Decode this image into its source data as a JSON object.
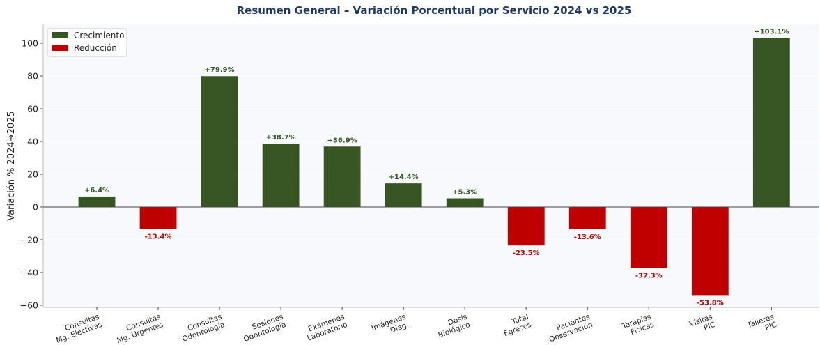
{
  "chart_data": {
    "type": "bar",
    "title": "Resumen General – Variación Porcentual por Servicio 2024 vs 2025",
    "y_label": "Variación % 2024→2025",
    "categories": [
      [
        "Consultas",
        "Mg. Electivas"
      ],
      [
        "Consultas",
        "Mg. Urgentes"
      ],
      [
        "Consultas",
        "Odontología"
      ],
      [
        "Sesiones",
        "Odontología"
      ],
      [
        "Exámenes",
        "Laboratorio"
      ],
      [
        "Imágenes",
        "Diag."
      ],
      [
        "Dosis",
        "Biológico"
      ],
      [
        "Total",
        "Egresos"
      ],
      [
        "Pacientes",
        "Observación"
      ],
      [
        "Terapias",
        "Físicas"
      ],
      [
        "Visitas",
        "PIC"
      ],
      [
        "Talleres",
        "PIC"
      ]
    ],
    "values": [
      6.4,
      -13.4,
      79.9,
      38.7,
      36.9,
      14.4,
      5.3,
      -23.5,
      -13.6,
      -37.3,
      -53.8,
      103.1
    ],
    "value_labels": [
      "+6.4%",
      "-13.4%",
      "+79.9%",
      "+38.7%",
      "+36.9%",
      "+14.4%",
      "+5.3%",
      "-23.5%",
      "-13.6%",
      "-37.3%",
      "-53.8%",
      "+103.1%"
    ],
    "legend": [
      {
        "name": "Crecimiento",
        "color": "#375623"
      },
      {
        "name": "Reducción",
        "color": "#c00000"
      }
    ],
    "legend_position": "upper left",
    "ylim": [
      -61.3,
      111.5
    ],
    "yticks": [
      {
        "value": -60,
        "label": "−60"
      },
      {
        "value": -40,
        "label": "−40"
      },
      {
        "value": -20,
        "label": "−20"
      },
      0,
      20,
      40,
      60,
      80,
      100
    ],
    "grid": true
  }
}
